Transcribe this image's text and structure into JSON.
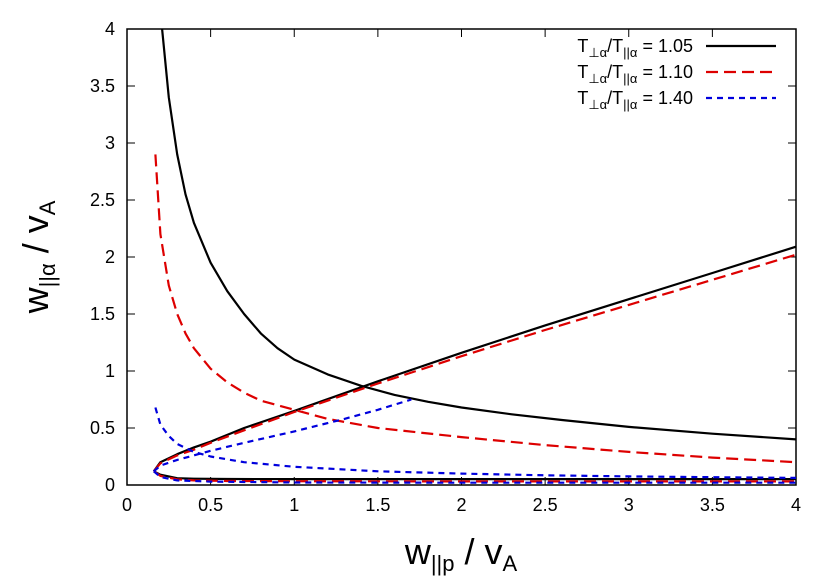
{
  "chart_data": {
    "type": "line",
    "title": "",
    "xlabel": {
      "main": "w",
      "sub": "||p",
      "rest": " / v",
      "sub2": "A"
    },
    "ylabel": {
      "main": "w",
      "sub": "||α",
      "rest": " / v",
      "sub2": "A"
    },
    "xlim": [
      0,
      4
    ],
    "ylim": [
      0,
      4
    ],
    "xticks": [
      "0",
      "0.5",
      "1",
      "1.5",
      "2",
      "2.5",
      "3",
      "3.5",
      "4"
    ],
    "yticks": [
      "0",
      "0.5",
      "1",
      "1.5",
      "2",
      "2.5",
      "3",
      "3.5",
      "4"
    ],
    "grid": false,
    "legend_position": "top-right",
    "series": [
      {
        "name": "T⊥α/T||α = 1.05",
        "legend": {
          "a": "T",
          "as": "⊥α",
          "b": "/T",
          "bs": "||α",
          "value": " = 1.05"
        },
        "color": "#000000",
        "dash": "solid",
        "curves": [
          [
            [
              0.21,
              4.0
            ],
            [
              0.25,
              3.4
            ],
            [
              0.3,
              2.9
            ],
            [
              0.35,
              2.55
            ],
            [
              0.4,
              2.3
            ],
            [
              0.5,
              1.95
            ],
            [
              0.6,
              1.7
            ],
            [
              0.7,
              1.5
            ],
            [
              0.8,
              1.33
            ],
            [
              0.9,
              1.2
            ],
            [
              1.0,
              1.1
            ],
            [
              1.2,
              0.97
            ],
            [
              1.4,
              0.87
            ],
            [
              1.6,
              0.79
            ],
            [
              1.8,
              0.73
            ],
            [
              2.0,
              0.68
            ],
            [
              2.3,
              0.62
            ],
            [
              2.6,
              0.57
            ],
            [
              3.0,
              0.51
            ],
            [
              3.5,
              0.45
            ],
            [
              4.0,
              0.4
            ]
          ],
          [
            [
              0.16,
              0.12
            ],
            [
              0.2,
              0.2
            ],
            [
              0.3,
              0.27
            ],
            [
              0.4,
              0.33
            ],
            [
              0.5,
              0.38
            ],
            [
              0.7,
              0.5
            ],
            [
              1.0,
              0.65
            ],
            [
              1.5,
              0.91
            ],
            [
              2.0,
              1.16
            ],
            [
              2.5,
              1.4
            ],
            [
              3.0,
              1.63
            ],
            [
              3.5,
              1.86
            ],
            [
              4.0,
              2.09
            ]
          ],
          [
            [
              0.16,
              0.12
            ],
            [
              0.2,
              0.09
            ],
            [
              0.3,
              0.06
            ],
            [
              0.4,
              0.055
            ],
            [
              0.6,
              0.053
            ],
            [
              1.0,
              0.052
            ],
            [
              2.0,
              0.052
            ],
            [
              3.0,
              0.052
            ],
            [
              4.0,
              0.052
            ]
          ]
        ]
      },
      {
        "name": "T⊥α/T||α = 1.10",
        "legend": {
          "a": "T",
          "as": "⊥α",
          "b": "/T",
          "bs": "||α",
          "value": " = 1.10"
        },
        "color": "#dd0000",
        "dash": "dashed",
        "curves": [
          [
            [
              0.17,
              2.9
            ],
            [
              0.2,
              2.2
            ],
            [
              0.25,
              1.75
            ],
            [
              0.3,
              1.5
            ],
            [
              0.35,
              1.33
            ],
            [
              0.4,
              1.2
            ],
            [
              0.5,
              1.02
            ],
            [
              0.6,
              0.9
            ],
            [
              0.7,
              0.81
            ],
            [
              0.8,
              0.74
            ],
            [
              1.0,
              0.66
            ],
            [
              1.2,
              0.58
            ],
            [
              1.5,
              0.5
            ],
            [
              2.0,
              0.42
            ],
            [
              2.5,
              0.35
            ],
            [
              3.0,
              0.29
            ],
            [
              3.5,
              0.24
            ],
            [
              4.0,
              0.2
            ]
          ],
          [
            [
              0.16,
              0.12
            ],
            [
              0.2,
              0.19
            ],
            [
              0.3,
              0.26
            ],
            [
              0.4,
              0.31
            ],
            [
              0.5,
              0.37
            ],
            [
              0.7,
              0.48
            ],
            [
              1.0,
              0.64
            ],
            [
              1.5,
              0.89
            ],
            [
              2.0,
              1.13
            ],
            [
              2.5,
              1.36
            ],
            [
              3.0,
              1.58
            ],
            [
              3.5,
              1.8
            ],
            [
              4.0,
              2.02
            ]
          ],
          [
            [
              0.16,
              0.12
            ],
            [
              0.2,
              0.08
            ],
            [
              0.3,
              0.05
            ],
            [
              0.4,
              0.04
            ],
            [
              0.6,
              0.035
            ],
            [
              1.0,
              0.033
            ],
            [
              2.0,
              0.032
            ],
            [
              4.0,
              0.032
            ]
          ]
        ]
      },
      {
        "name": "T⊥α/T||α = 1.40",
        "legend": {
          "a": "T",
          "as": "⊥α",
          "b": "/T",
          "bs": "||α",
          "value": " = 1.40"
        },
        "color": "#0000dd",
        "dash": "dotted",
        "curves": [
          [
            [
              0.17,
              0.68
            ],
            [
              0.2,
              0.53
            ],
            [
              0.25,
              0.43
            ],
            [
              0.3,
              0.36
            ],
            [
              0.4,
              0.29
            ],
            [
              0.5,
              0.25
            ],
            [
              0.7,
              0.2
            ],
            [
              1.0,
              0.16
            ],
            [
              1.5,
              0.12
            ],
            [
              2.0,
              0.1
            ],
            [
              2.5,
              0.085
            ],
            [
              3.0,
              0.075
            ],
            [
              3.5,
              0.068
            ],
            [
              4.0,
              0.062
            ]
          ],
          [
            [
              0.16,
              0.12
            ],
            [
              0.2,
              0.17
            ],
            [
              0.3,
              0.22
            ],
            [
              0.4,
              0.26
            ],
            [
              0.5,
              0.3
            ],
            [
              0.7,
              0.37
            ],
            [
              1.0,
              0.47
            ],
            [
              1.3,
              0.58
            ],
            [
              1.5,
              0.66
            ],
            [
              1.7,
              0.75
            ]
          ],
          [
            [
              0.16,
              0.12
            ],
            [
              0.2,
              0.07
            ],
            [
              0.3,
              0.04
            ],
            [
              0.5,
              0.03
            ],
            [
              1.0,
              0.022
            ],
            [
              2.0,
              0.02
            ],
            [
              3.0,
              0.02
            ],
            [
              4.0,
              0.02
            ]
          ]
        ]
      }
    ]
  }
}
